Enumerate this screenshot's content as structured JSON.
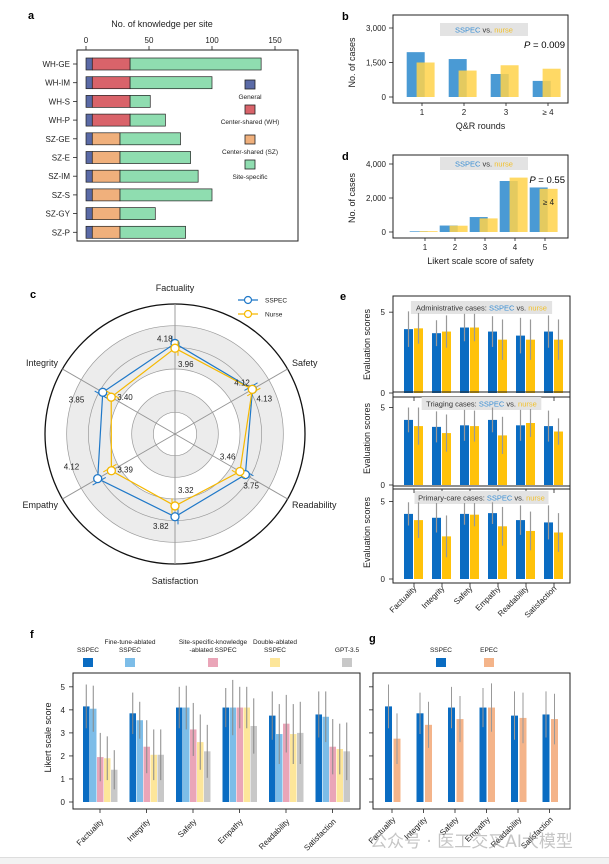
{
  "panels": {
    "a": "a",
    "b": "b",
    "c": "c",
    "d": "d",
    "e": "e",
    "f": "f",
    "g": "g"
  },
  "colors": {
    "general": "#5a6aa6",
    "center_wh": "#d9636a",
    "center_sz": "#f0b07c",
    "site_specific": "#8fddb0",
    "sspec": "#4a9ad4",
    "nurse": "#ffd24a",
    "sspec_dark": "#0a6cc2",
    "nurse_dark": "#ffc20a",
    "ft_ablated": "#7dbde8",
    "sk_ablated": "#eaa5b8",
    "double_ablated": "#fde69a",
    "gpt": "#c8c8c8",
    "epec": "#f4b48a"
  },
  "chart_data": [
    {
      "id": "a",
      "type": "bar",
      "orientation": "horizontal",
      "stacked": true,
      "title": "No. of knowledge per site",
      "categories": [
        "WH-GE",
        "WH-IM",
        "WH-S",
        "WH-P",
        "SZ-GE",
        "SZ-E",
        "SZ-IM",
        "SZ-S",
        "SZ-GY",
        "SZ-P"
      ],
      "series": [
        {
          "name": "General",
          "values": [
            5,
            5,
            5,
            5,
            5,
            5,
            5,
            5,
            5,
            5
          ]
        },
        {
          "name": "Center-shared (WH)",
          "values": [
            30,
            30,
            30,
            30,
            0,
            0,
            0,
            0,
            0,
            0
          ]
        },
        {
          "name": "Center-shared (SZ)",
          "values": [
            0,
            0,
            0,
            0,
            22,
            22,
            22,
            22,
            22,
            22
          ]
        },
        {
          "name": "Site-specific",
          "values": [
            104,
            65,
            16,
            28,
            48,
            56,
            62,
            73,
            28,
            52
          ]
        }
      ],
      "xlim": [
        0,
        170
      ],
      "xticks": [
        0,
        50,
        100,
        150
      ],
      "legend": "right"
    },
    {
      "id": "b",
      "type": "bar",
      "categories": [
        "1",
        "2",
        "3",
        "≥ 4"
      ],
      "series": [
        {
          "name": "SSPEC",
          "values": [
            1950,
            1650,
            1000,
            700
          ]
        },
        {
          "name": "nurse",
          "values": [
            1500,
            1150,
            1380,
            1230
          ]
        }
      ],
      "xlabel": "Q&R rounds",
      "ylabel": "No. of cases",
      "ylim": [
        0,
        3000
      ],
      "yticks": [
        "0",
        "1,500",
        "3,000"
      ],
      "legend_title": [
        "SSPEC",
        " vs. ",
        "nurse"
      ],
      "annotation": "P = 0.009"
    },
    {
      "id": "d",
      "type": "bar",
      "categories": [
        "1",
        "2",
        "3",
        "4",
        "5"
      ],
      "series": [
        {
          "name": "SSPEC",
          "values": [
            40,
            380,
            880,
            3000,
            2620
          ]
        },
        {
          "name": "nurse",
          "values": [
            50,
            370,
            800,
            3200,
            2540
          ]
        }
      ],
      "xlabel": "Likert scale score of safety",
      "ylabel": "No. of cases",
      "ylim": [
        0,
        4000
      ],
      "yticks": [
        "0",
        "2,000",
        "4,000"
      ],
      "legend_title": [
        "SSPEC",
        " vs. ",
        "nurse"
      ],
      "annotation": "P = 0.55",
      "overlay_label": "≥ 4"
    },
    {
      "id": "c",
      "type": "radar",
      "axes": [
        "Factuality",
        "Safety",
        "Readability",
        "Satisfaction",
        "Empathy",
        "Integrity"
      ],
      "series": [
        {
          "name": "SSPEC",
          "values": [
            4.18,
            4.13,
            3.75,
            3.82,
            4.12,
            3.85
          ],
          "labels": [
            "4.18",
            "4.13",
            "3.75",
            "3.82",
            "4.12",
            "3.85"
          ]
        },
        {
          "name": "Nurse",
          "values": [
            3.96,
            4.12,
            3.46,
            3.32,
            3.39,
            3.4
          ],
          "labels": [
            "3.96",
            "4.12",
            "3.46",
            "3.32",
            "3.39",
            "3.40"
          ]
        }
      ],
      "rlim": [
        0,
        6
      ],
      "legend": "top-right"
    },
    {
      "id": "e",
      "type": "bar",
      "categories": [
        "Factuality",
        "Integrity",
        "Safety",
        "Empathy",
        "Readability",
        "Satisfaction"
      ],
      "ylabel": "Evaluation scores",
      "ylim": [
        0,
        6
      ],
      "yticks": [
        "0",
        "5"
      ],
      "subplots": [
        {
          "title": [
            "Administrative cases: ",
            "SSPEC",
            " vs. ",
            "nurse"
          ],
          "series": [
            {
              "name": "SSPEC",
              "values": [
                3.95,
                3.7,
                4.05,
                3.8,
                3.55,
                3.8
              ],
              "err": [
                1.1,
                0.8,
                0.85,
                0.95,
                1.1,
                1.0
              ]
            },
            {
              "name": "nurse",
              "values": [
                4.0,
                3.8,
                4.05,
                3.3,
                3.3,
                3.3
              ],
              "err": [
                0.95,
                1.0,
                0.85,
                1.25,
                1.25,
                1.25
              ]
            }
          ]
        },
        {
          "title": [
            "Triaging cases: ",
            "SSPEC",
            " vs. ",
            "nurse"
          ],
          "series": [
            {
              "name": "SSPEC",
              "values": [
                4.2,
                3.75,
                3.85,
                4.2,
                3.85,
                3.8
              ],
              "err": [
                0.8,
                1.0,
                1.0,
                0.8,
                1.0,
                1.0
              ]
            },
            {
              "name": "nurse",
              "values": [
                3.8,
                3.35,
                3.8,
                3.2,
                4.0,
                3.45
              ],
              "err": [
                1.2,
                1.2,
                1.0,
                1.2,
                0.9,
                0.85
              ]
            }
          ]
        },
        {
          "title": [
            "Primary-care cases: ",
            "SSPEC",
            " vs. ",
            "nurse"
          ],
          "series": [
            {
              "name": "SSPEC",
              "values": [
                4.2,
                3.95,
                4.2,
                4.25,
                3.8,
                3.65
              ],
              "err": [
                0.75,
                0.95,
                0.7,
                0.7,
                0.95,
                1.1
              ]
            },
            {
              "name": "nurse",
              "values": [
                3.8,
                2.75,
                4.15,
                3.4,
                3.1,
                3.0
              ],
              "err": [
                1.15,
                1.35,
                0.75,
                1.25,
                1.25,
                1.25
              ]
            }
          ]
        }
      ]
    },
    {
      "id": "f",
      "type": "bar",
      "categories": [
        "Factuality",
        "Integrity",
        "Safety",
        "Empathy",
        "Readability",
        "Satisfaction"
      ],
      "ylabel": "Likert scale score",
      "ylim": [
        0,
        5.6
      ],
      "yticks": [
        "0",
        "1",
        "2",
        "3",
        "4",
        "5"
      ],
      "series": [
        {
          "name": "SSPEC",
          "legend": [
            "",
            "SSPEC"
          ],
          "values": [
            4.15,
            3.85,
            4.1,
            4.1,
            3.75,
            3.8
          ],
          "err": [
            0.95,
            0.9,
            0.9,
            0.85,
            1.05,
            1.0
          ]
        },
        {
          "name": "Fine-tune-ablated SSPEC",
          "legend": [
            "Fine-tune-ablated",
            "SSPEC"
          ],
          "values": [
            4.05,
            3.55,
            4.1,
            4.1,
            2.95,
            3.7
          ],
          "err": [
            1.0,
            0.8,
            0.95,
            1.2,
            1.3,
            1.1
          ]
        },
        {
          "name": "Site-specific-knowledge-ablated SSPEC",
          "legend": [
            "Site-specific-knowledge",
            "-ablated SSPEC"
          ],
          "values": [
            1.95,
            2.4,
            3.15,
            4.1,
            3.4,
            2.4
          ],
          "err": [
            1.05,
            1.15,
            1.15,
            0.9,
            1.25,
            1.2
          ]
        },
        {
          "name": "Double-ablated SSPEC",
          "legend": [
            "Double-ablated",
            "SSPEC"
          ],
          "values": [
            1.9,
            2.05,
            2.6,
            4.1,
            2.95,
            2.3
          ],
          "err": [
            0.95,
            1.1,
            1.2,
            0.9,
            1.3,
            1.1
          ]
        },
        {
          "name": "GPT-3.5",
          "legend": [
            "",
            "GPT-3.5"
          ],
          "values": [
            1.4,
            2.05,
            2.2,
            3.3,
            3.0,
            2.2
          ],
          "err": [
            0.85,
            1.1,
            1.15,
            1.2,
            1.35,
            1.25
          ]
        }
      ]
    },
    {
      "id": "g",
      "type": "bar",
      "categories": [
        "Factuality",
        "Integrity",
        "Safety",
        "Empathy",
        "Readability",
        "Satisfaction"
      ],
      "ylim": [
        0,
        5.6
      ],
      "series": [
        {
          "name": "SSPEC",
          "values": [
            4.15,
            3.85,
            4.1,
            4.1,
            3.75,
            3.8
          ],
          "err": [
            0.95,
            0.9,
            0.9,
            0.85,
            1.05,
            1.0
          ]
        },
        {
          "name": "EPEC",
          "values": [
            2.75,
            3.35,
            3.6,
            4.1,
            3.65,
            3.6
          ],
          "err": [
            1.1,
            1.0,
            1.0,
            1.05,
            1.1,
            1.1
          ]
        }
      ]
    }
  ],
  "watermark": "公众号 · 医工交叉AI大模型"
}
